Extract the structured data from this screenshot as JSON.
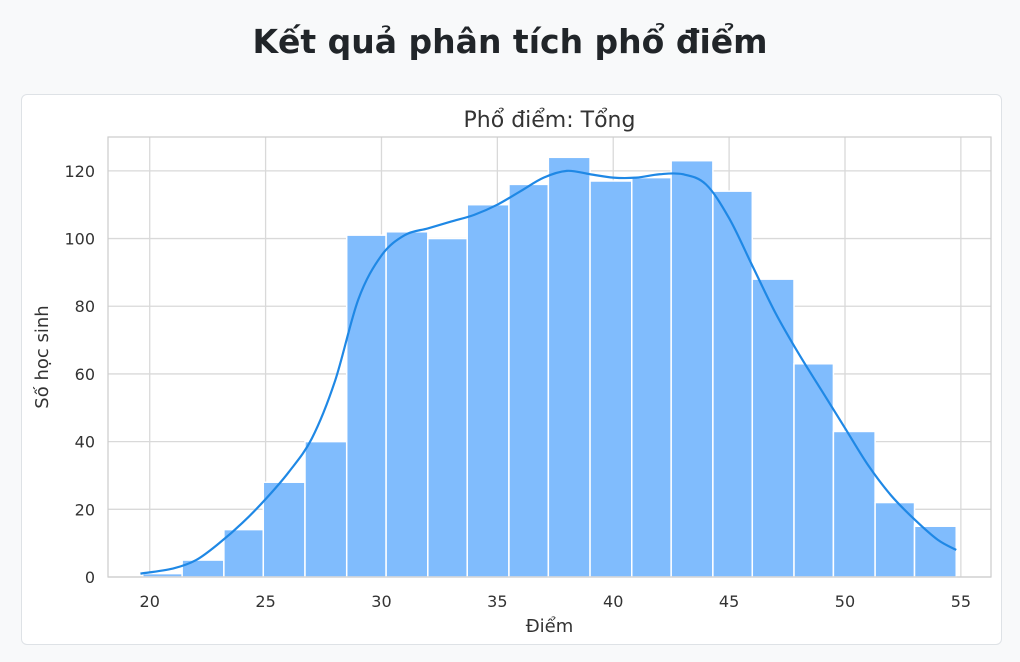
{
  "page": {
    "title": "Kết quả phân tích phổ điểm"
  },
  "chart_data": {
    "type": "bar",
    "title": "Phổ điểm: Tổng",
    "xlabel": "Điểm",
    "ylabel": "Số học sinh",
    "xlim": [
      18.2,
      56.3
    ],
    "ylim": [
      0,
      130
    ],
    "xticks": [
      20,
      25,
      30,
      35,
      40,
      45,
      50,
      55
    ],
    "yticks": [
      0,
      20,
      40,
      60,
      80,
      100,
      120
    ],
    "grid": true,
    "bar_color": "#80bcfd",
    "line_color": "#1f88e5",
    "bins": [
      {
        "x0": 19.7,
        "x1": 21.4,
        "value": 1
      },
      {
        "x0": 21.4,
        "x1": 23.2,
        "value": 5
      },
      {
        "x0": 23.2,
        "x1": 24.9,
        "value": 14
      },
      {
        "x0": 24.9,
        "x1": 26.7,
        "value": 28
      },
      {
        "x0": 26.7,
        "x1": 28.5,
        "value": 40
      },
      {
        "x0": 28.5,
        "x1": 30.2,
        "value": 101
      },
      {
        "x0": 30.2,
        "x1": 32.0,
        "value": 102
      },
      {
        "x0": 32.0,
        "x1": 33.7,
        "value": 100
      },
      {
        "x0": 33.7,
        "x1": 35.5,
        "value": 110
      },
      {
        "x0": 35.5,
        "x1": 37.2,
        "value": 116
      },
      {
        "x0": 37.2,
        "x1": 39.0,
        "value": 124
      },
      {
        "x0": 39.0,
        "x1": 40.8,
        "value": 117
      },
      {
        "x0": 40.8,
        "x1": 42.5,
        "value": 118
      },
      {
        "x0": 42.5,
        "x1": 44.3,
        "value": 123
      },
      {
        "x0": 44.3,
        "x1": 46.0,
        "value": 114
      },
      {
        "x0": 46.0,
        "x1": 47.8,
        "value": 88
      },
      {
        "x0": 47.8,
        "x1": 49.5,
        "value": 63
      },
      {
        "x0": 49.5,
        "x1": 51.3,
        "value": 43
      },
      {
        "x0": 51.3,
        "x1": 53.0,
        "value": 22
      },
      {
        "x0": 53.0,
        "x1": 54.8,
        "value": 15
      }
    ],
    "kde": {
      "x": [
        19.6,
        21,
        22,
        23,
        24,
        25,
        26,
        27,
        28,
        29,
        30,
        31,
        32,
        33,
        34,
        35,
        36,
        37,
        38,
        39,
        40,
        41,
        42,
        43,
        44,
        45,
        46,
        47,
        48,
        49,
        50,
        51,
        52,
        53,
        54,
        54.8
      ],
      "y": [
        1,
        2.5,
        5,
        10,
        16,
        23,
        31,
        41,
        58,
        82,
        95,
        101,
        103,
        105,
        107,
        110,
        114,
        118,
        120,
        119,
        118,
        118,
        119,
        119,
        116,
        106,
        92,
        78,
        66,
        55,
        44,
        33,
        24,
        17,
        11,
        8
      ]
    }
  }
}
